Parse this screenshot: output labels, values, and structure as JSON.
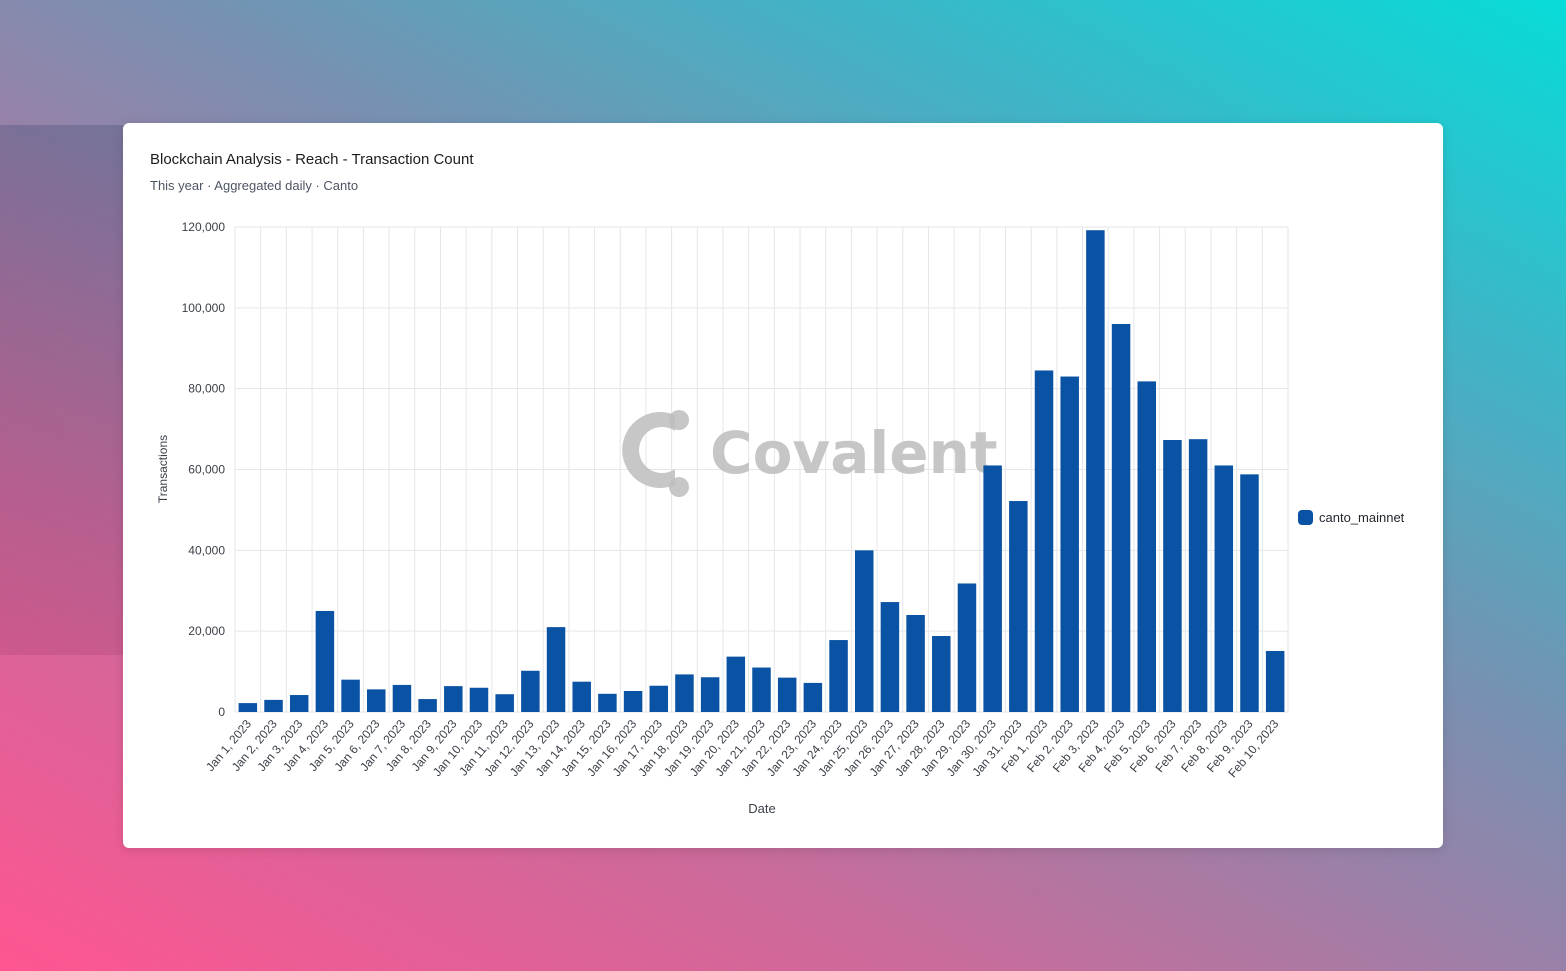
{
  "card": {
    "title": "Blockchain Analysis - Reach - Transaction Count",
    "subtitle": "This year · Aggregated daily · Canto"
  },
  "watermark": {
    "text": "Covalent"
  },
  "colors": {
    "bar": "#0a52a3",
    "grid": "#e4e6ea",
    "axis_text": "#3a3f48",
    "watermark": "#bdbdbd"
  },
  "chart_data": {
    "type": "bar",
    "xlabel": "Date",
    "ylabel": "Transactions",
    "ylim": [
      0,
      120000
    ],
    "yticks": [
      0,
      20000,
      40000,
      60000,
      80000,
      100000,
      120000
    ],
    "ytick_labels": [
      "0",
      "20,000",
      "40,000",
      "60,000",
      "80,000",
      "100,000",
      "120,000"
    ],
    "grid": true,
    "legend": "right",
    "categories": [
      "Jan 1, 2023",
      "Jan 2, 2023",
      "Jan 3, 2023",
      "Jan 4, 2023",
      "Jan 5, 2023",
      "Jan 6, 2023",
      "Jan 7, 2023",
      "Jan 8, 2023",
      "Jan 9, 2023",
      "Jan 10, 2023",
      "Jan 11, 2023",
      "Jan 12, 2023",
      "Jan 13, 2023",
      "Jan 14, 2023",
      "Jan 15, 2023",
      "Jan 16, 2023",
      "Jan 17, 2023",
      "Jan 18, 2023",
      "Jan 19, 2023",
      "Jan 20, 2023",
      "Jan 21, 2023",
      "Jan 22, 2023",
      "Jan 23, 2023",
      "Jan 24, 2023",
      "Jan 25, 2023",
      "Jan 26, 2023",
      "Jan 27, 2023",
      "Jan 28, 2023",
      "Jan 29, 2023",
      "Jan 30, 2023",
      "Jan 31, 2023",
      "Feb 1, 2023",
      "Feb 2, 2023",
      "Feb 3, 2023",
      "Feb 4, 2023",
      "Feb 5, 2023",
      "Feb 6, 2023",
      "Feb 7, 2023",
      "Feb 8, 2023",
      "Feb 9, 2023",
      "Feb 10, 2023"
    ],
    "series": [
      {
        "name": "canto_mainnet",
        "color": "#0a52a3",
        "values": [
          2200,
          3000,
          4200,
          25000,
          8000,
          5600,
          6700,
          3200,
          6400,
          6000,
          4400,
          10200,
          21000,
          7500,
          4500,
          5200,
          6500,
          9300,
          8600,
          13700,
          11000,
          8500,
          7200,
          17800,
          40000,
          27200,
          24000,
          18800,
          31800,
          61000,
          52200,
          84500,
          83000,
          119200,
          96000,
          81800,
          67300,
          67500,
          61000,
          58800,
          15100
        ]
      }
    ]
  }
}
